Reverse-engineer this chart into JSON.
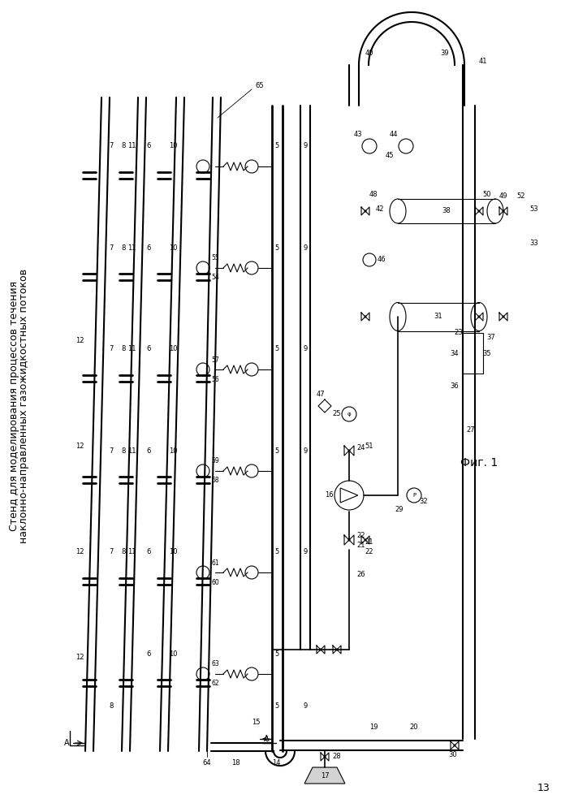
{
  "title_line1": "Стенд для моделирования процессов течения",
  "title_line2": "наклонно-направленных газожидкостных потоков",
  "fig_label": "Фиг. 1",
  "page_num": "13",
  "background": "#ffffff",
  "font_size_title": 9,
  "font_size_labels": 6.5
}
